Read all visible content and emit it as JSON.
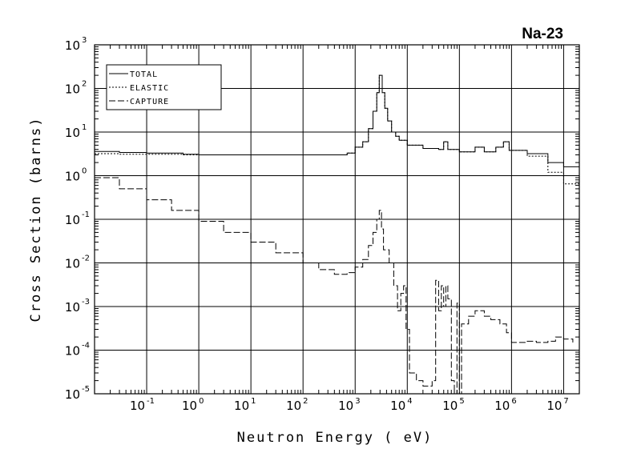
{
  "chart_data": {
    "type": "line",
    "title": "Na-23",
    "xlabel": "Neutron Energy ( eV)",
    "ylabel": "Cross Section (barns)",
    "x_scale": "log",
    "y_scale": "log",
    "xlim": [
      0.01,
      20000000
    ],
    "ylim": [
      1e-05,
      1000
    ],
    "grid": true,
    "legend_position": "top-left",
    "x_ticks": [
      {
        "base": "10",
        "exp": "-1",
        "value": 0.1
      },
      {
        "base": "10",
        "exp": "0",
        "value": 1
      },
      {
        "base": "10",
        "exp": "1",
        "value": 10
      },
      {
        "base": "10",
        "exp": "2",
        "value": 100
      },
      {
        "base": "10",
        "exp": "3",
        "value": 1000
      },
      {
        "base": "10",
        "exp": "4",
        "value": 10000
      },
      {
        "base": "10",
        "exp": "5",
        "value": 100000
      },
      {
        "base": "10",
        "exp": "6",
        "value": 1000000
      },
      {
        "base": "10",
        "exp": "7",
        "value": 10000000
      }
    ],
    "y_ticks": [
      {
        "base": "10",
        "exp": "-5",
        "value": 1e-05
      },
      {
        "base": "10",
        "exp": "-4",
        "value": 0.0001
      },
      {
        "base": "10",
        "exp": "-3",
        "value": 0.001
      },
      {
        "base": "10",
        "exp": "-2",
        "value": 0.01
      },
      {
        "base": "10",
        "exp": "-1",
        "value": 0.1
      },
      {
        "base": "10",
        "exp": "0",
        "value": 1
      },
      {
        "base": "10",
        "exp": "1",
        "value": 10
      },
      {
        "base": "10",
        "exp": "2",
        "value": 100
      },
      {
        "base": "10",
        "exp": "3",
        "value": 1000
      }
    ],
    "series": [
      {
        "name": "TOTAL",
        "style": "solid",
        "points": [
          [
            0.01,
            3.6
          ],
          [
            0.03,
            3.4
          ],
          [
            0.1,
            3.3
          ],
          [
            0.5,
            3.1
          ],
          [
            1,
            3.0
          ],
          [
            10,
            3.0
          ],
          [
            100,
            3.0
          ],
          [
            400,
            3.0
          ],
          [
            700,
            3.3
          ],
          [
            1000,
            4.5
          ],
          [
            1400,
            6
          ],
          [
            1800,
            12
          ],
          [
            2200,
            30
          ],
          [
            2600,
            80
          ],
          [
            2900,
            200
          ],
          [
            3300,
            80
          ],
          [
            3700,
            35
          ],
          [
            4200,
            18
          ],
          [
            5000,
            10
          ],
          [
            6000,
            8
          ],
          [
            7000,
            6.5
          ],
          [
            10000,
            5
          ],
          [
            20000,
            4.2
          ],
          [
            40000,
            4.0
          ],
          [
            50000,
            6.0
          ],
          [
            60000,
            4.0
          ],
          [
            100000,
            3.5
          ],
          [
            200000,
            4.5
          ],
          [
            300000,
            3.5
          ],
          [
            500000,
            4.5
          ],
          [
            700000,
            6.0
          ],
          [
            900000,
            3.8
          ],
          [
            2000000,
            3.2
          ],
          [
            5000000,
            2.0
          ],
          [
            10000000,
            1.6
          ],
          [
            20000000,
            1.9
          ]
        ]
      },
      {
        "name": "ELASTIC",
        "style": "dotted",
        "points": [
          [
            0.01,
            3.2
          ],
          [
            0.03,
            3.1
          ],
          [
            0.1,
            3.1
          ],
          [
            0.5,
            3.0
          ],
          [
            1,
            3.0
          ],
          [
            10,
            3.0
          ],
          [
            100,
            3.0
          ],
          [
            400,
            3.0
          ],
          [
            700,
            3.3
          ],
          [
            1000,
            4.5
          ],
          [
            1400,
            6
          ],
          [
            1800,
            12
          ],
          [
            2200,
            30
          ],
          [
            2600,
            80
          ],
          [
            2900,
            200
          ],
          [
            3300,
            80
          ],
          [
            3700,
            35
          ],
          [
            4200,
            18
          ],
          [
            5000,
            10
          ],
          [
            6000,
            8
          ],
          [
            7000,
            6.5
          ],
          [
            10000,
            5
          ],
          [
            20000,
            4.2
          ],
          [
            40000,
            4.0
          ],
          [
            50000,
            6.0
          ],
          [
            60000,
            4.0
          ],
          [
            100000,
            3.5
          ],
          [
            200000,
            4.5
          ],
          [
            300000,
            3.5
          ],
          [
            500000,
            4.5
          ],
          [
            700000,
            6.0
          ],
          [
            900000,
            3.8
          ],
          [
            2000000,
            2.8
          ],
          [
            5000000,
            1.2
          ],
          [
            10000000,
            0.65
          ],
          [
            20000000,
            0.8
          ]
        ]
      },
      {
        "name": "CAPTURE",
        "style": "dashed",
        "points": [
          [
            0.01,
            0.9
          ],
          [
            0.03,
            0.5
          ],
          [
            0.1,
            0.28
          ],
          [
            0.3,
            0.16
          ],
          [
            1,
            0.09
          ],
          [
            3,
            0.05
          ],
          [
            10,
            0.03
          ],
          [
            30,
            0.017
          ],
          [
            100,
            0.01
          ],
          [
            200,
            0.007
          ],
          [
            400,
            0.0055
          ],
          [
            700,
            0.006
          ],
          [
            1000,
            0.008
          ],
          [
            1400,
            0.012
          ],
          [
            1800,
            0.025
          ],
          [
            2200,
            0.05
          ],
          [
            2600,
            0.1
          ],
          [
            2900,
            0.16
          ],
          [
            3200,
            0.06
          ],
          [
            3500,
            0.02
          ],
          [
            4500,
            0.01
          ],
          [
            5500,
            0.003
          ],
          [
            6500,
            0.0008
          ],
          [
            7500,
            0.002
          ],
          [
            8500,
            0.003
          ],
          [
            9500,
            0.0003
          ],
          [
            11000,
            3e-05
          ],
          [
            15000,
            2e-05
          ],
          [
            20000,
            1.5e-05
          ],
          [
            30000,
            2e-05
          ],
          [
            35000,
            0.004
          ],
          [
            40000,
            0.0008
          ],
          [
            45000,
            0.003
          ],
          [
            50000,
            0.001
          ],
          [
            55000,
            0.003
          ],
          [
            60000,
            0.0015
          ],
          [
            70000,
            2e-05
          ],
          [
            80000,
            8e-06
          ],
          [
            90000,
            0.0012
          ],
          [
            100000,
            8e-06
          ],
          [
            110000,
            0.0004
          ],
          [
            150000,
            0.0006
          ],
          [
            200000,
            0.0008
          ],
          [
            300000,
            0.0006
          ],
          [
            400000,
            0.0005
          ],
          [
            600000,
            0.0004
          ],
          [
            800000,
            0.00025
          ],
          [
            1000000,
            0.00015
          ],
          [
            2000000,
            0.00016
          ],
          [
            3000000,
            0.00015
          ],
          [
            5000000,
            0.00016
          ],
          [
            7000000,
            0.0002
          ],
          [
            10000000,
            0.00018
          ],
          [
            15000000,
            0.00015
          ]
        ]
      }
    ]
  }
}
